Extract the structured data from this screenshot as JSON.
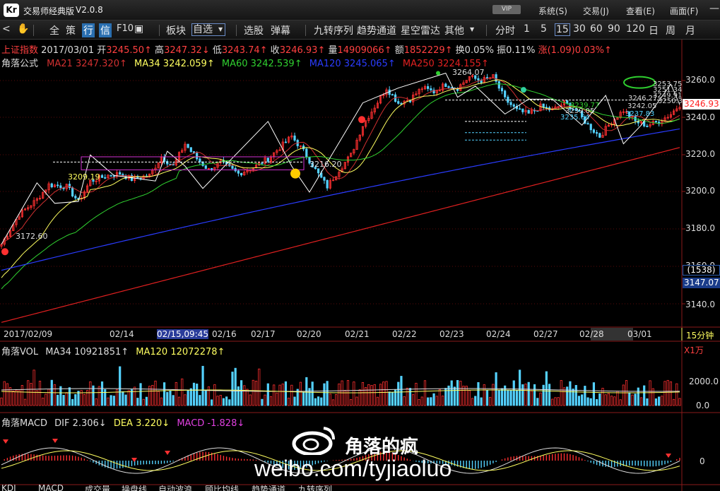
{
  "app": {
    "logo": "Kr",
    "title": "交易师经典版",
    "version": "V2.0.8",
    "vip": "VIP"
  },
  "menus": [
    "系统(S)",
    "交易(J)",
    "查看(E)",
    "画面(F)"
  ],
  "toolbar": {
    "all": "全",
    "strategy": "策",
    "quote": "行",
    "info": "信",
    "f10": "F10",
    "sector": "板块",
    "watchlist": "自选",
    "stock_pick": "选股",
    "popup": "弹幕",
    "jiuzhuan": "九转序列",
    "trend": "趋势通道",
    "radar": "星空雷达",
    "more": "其他",
    "period_label": "分时",
    "periods": [
      "1",
      "5",
      "15",
      "30",
      "60",
      "90",
      "120",
      "日",
      "周",
      "月"
    ],
    "active_period": "15"
  },
  "header": {
    "name": "上证指数",
    "date": "2017/03/01",
    "open_label": "开",
    "open": "3245.50↑",
    "high_label": "高",
    "high": "3247.32↓",
    "low_label": "低",
    "low": "3243.74↑",
    "close_label": "收",
    "close": "3246.93↑",
    "vol_label": "量",
    "vol": "14909066↑",
    "amt_label": "额",
    "amt": "1852229↑",
    "turnover_label": "换",
    "turnover": "0.05%",
    "amp_label": "振",
    "amp": "0.11%",
    "chg_label": "涨",
    "chg": "(1.09)0.03%↑"
  },
  "ma_line": {
    "name": "角落公式",
    "ma21": "MA21 3247.320↑",
    "ma34": "MA34 3242.059↑",
    "ma60": "MA60 3242.539↑",
    "ma120": "MA120 3245.065↑",
    "ma250": "MA250 3224.155↑"
  },
  "y_axis": [
    "3260.0",
    "3240.0",
    "3220.0",
    "3200.0",
    "3180.0",
    "3160.0",
    "3140.0"
  ],
  "current_price": "3246.93",
  "count_badge": "(1538)",
  "right_value": "3147.07",
  "dates": [
    "2017/02/09",
    "02/14",
    "02/15,09:45",
    "02/16",
    "02/17",
    "02/20",
    "02/21",
    "02/22",
    "02/23",
    "02/24",
    "02/27",
    "02/28",
    "03/01"
  ],
  "period_tag": "15分钟",
  "annotations": {
    "low1": "3172.60",
    "p3209": "3209.19",
    "p3216": "3216.20",
    "p3264": "3264.07",
    "r1": "3253.75",
    "r2": "3251.34",
    "r3": "3249.91",
    "r4": "3248.20",
    "r5": "3250.3",
    "r6": "3246.27",
    "r7": "3242.05",
    "r8": "3239.77",
    "r9": "3239.05",
    "r10": "3237.83",
    "r11": "3235.64"
  },
  "vol": {
    "name": "角落VOL",
    "ma34": "MA34 10921851↑",
    "ma120": "MA120 12072278↑",
    "unit": "X1万",
    "ticks": [
      "2000.0",
      "0.0"
    ]
  },
  "macd": {
    "name": "角落MACD",
    "dif": "DIF 2.306↓",
    "dea": "DEA 3.220↓",
    "macd": "MACD -1.828↓",
    "zero": "0"
  },
  "watermark": {
    "handle": "角落的疯",
    "url": "weibo.com/tyjiaoluo"
  },
  "bottom_tabs": [
    "KDJ",
    "MACD",
    "成交量",
    "操盘线",
    "自动波浪",
    "顾比均线",
    "趋势通道",
    "九转序列"
  ],
  "colors": {
    "up": "#ff3030",
    "down": "#54d2ff",
    "ma21": "#d03030",
    "ma34": "#ffff60",
    "ma60": "#30d030",
    "ma120": "#2a3cff",
    "ma250": "#e02020"
  }
}
